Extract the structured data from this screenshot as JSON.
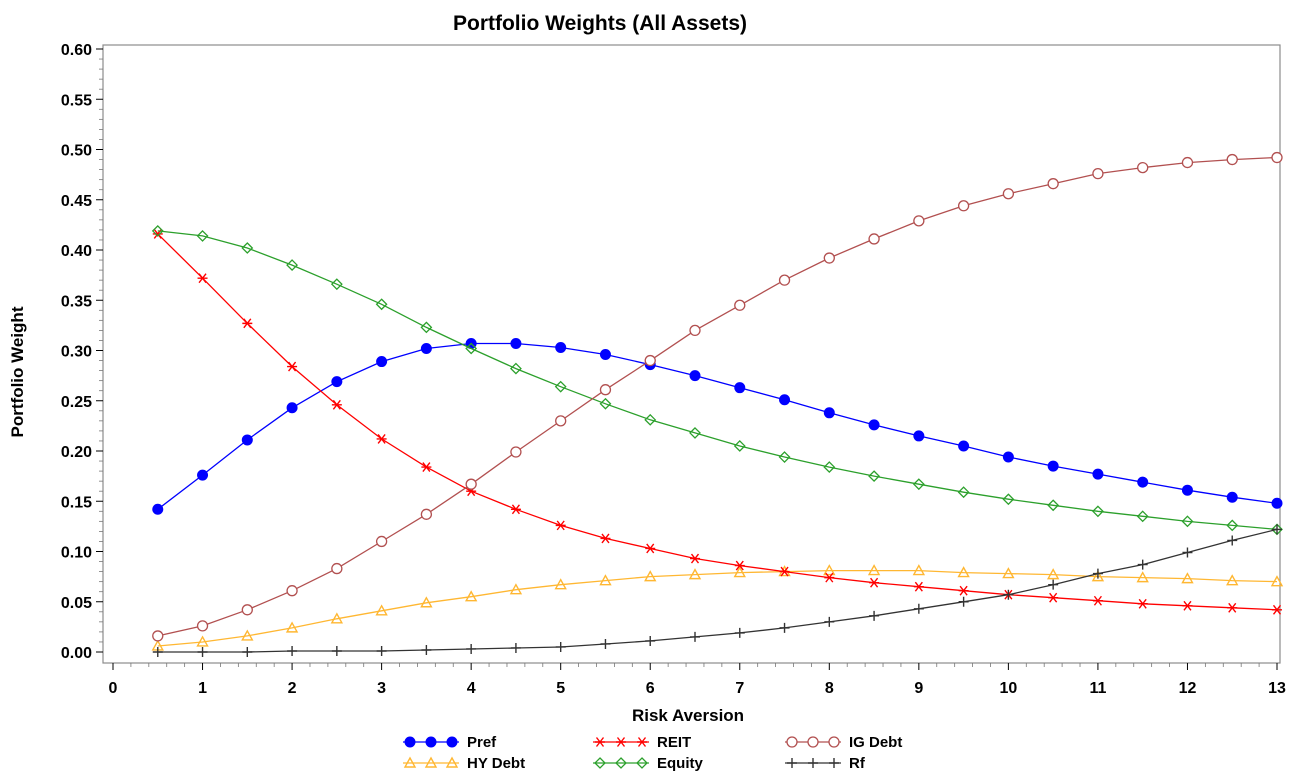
{
  "chart_data": {
    "type": "line",
    "title": "Portfolio Weights (All Assets)",
    "xlabel": "Risk Aversion",
    "ylabel": "Portfolio Weight",
    "xlim": [
      0,
      13
    ],
    "ylim": [
      0,
      0.6
    ],
    "xticks": [
      0,
      1,
      2,
      3,
      4,
      5,
      6,
      7,
      8,
      9,
      10,
      11,
      12,
      13
    ],
    "xtick_labels": [
      "0",
      "1",
      "2",
      "3",
      "4",
      "5",
      "6",
      "7",
      "8",
      "9",
      "10",
      "11",
      "12",
      "13"
    ],
    "yticks": [
      0,
      0.05,
      0.1,
      0.15,
      0.2,
      0.25,
      0.3,
      0.35,
      0.4,
      0.45,
      0.5,
      0.55,
      0.6
    ],
    "ytick_labels": [
      "0.00",
      "0.05",
      "0.10",
      "0.15",
      "0.20",
      "0.25",
      "0.30",
      "0.35",
      "0.40",
      "0.45",
      "0.50",
      "0.55",
      "0.60"
    ],
    "grid": false,
    "legend_position": "bottom",
    "x": [
      0.5,
      1,
      1.5,
      2,
      2.5,
      3,
      3.5,
      4,
      4.5,
      5,
      5.5,
      6,
      6.5,
      7,
      7.5,
      8,
      8.5,
      9,
      9.5,
      10,
      10.5,
      11,
      11.5,
      12,
      12.5,
      13
    ],
    "series": [
      {
        "name": "Pref",
        "color": "#0000ff",
        "marker": "filled-circle",
        "values": [
          0.142,
          0.176,
          0.211,
          0.243,
          0.269,
          0.289,
          0.302,
          0.307,
          0.307,
          0.303,
          0.296,
          0.286,
          0.275,
          0.263,
          0.251,
          0.238,
          0.226,
          0.215,
          0.205,
          0.194,
          0.185,
          0.177,
          0.169,
          0.161,
          0.154,
          0.148
        ]
      },
      {
        "name": "HY Debt",
        "color": "#ffb732",
        "marker": "triangle",
        "values": [
          0.006,
          0.01,
          0.016,
          0.024,
          0.033,
          0.041,
          0.049,
          0.055,
          0.062,
          0.067,
          0.071,
          0.075,
          0.077,
          0.079,
          0.08,
          0.081,
          0.081,
          0.081,
          0.079,
          0.078,
          0.077,
          0.075,
          0.074,
          0.073,
          0.071,
          0.07
        ]
      },
      {
        "name": "REIT",
        "color": "#ff0000",
        "marker": "star",
        "values": [
          0.416,
          0.372,
          0.327,
          0.284,
          0.246,
          0.212,
          0.184,
          0.16,
          0.142,
          0.126,
          0.113,
          0.103,
          0.093,
          0.086,
          0.08,
          0.074,
          0.069,
          0.065,
          0.061,
          0.057,
          0.054,
          0.051,
          0.048,
          0.046,
          0.044,
          0.042
        ]
      },
      {
        "name": "Equity",
        "color": "#2ca02c",
        "marker": "diamond",
        "values": [
          0.419,
          0.414,
          0.402,
          0.385,
          0.366,
          0.346,
          0.323,
          0.302,
          0.282,
          0.264,
          0.247,
          0.231,
          0.218,
          0.205,
          0.194,
          0.184,
          0.175,
          0.167,
          0.159,
          0.152,
          0.146,
          0.14,
          0.135,
          0.13,
          0.126,
          0.122
        ]
      },
      {
        "name": "IG Debt",
        "color": "#b25050",
        "marker": "open-circle",
        "values": [
          0.016,
          0.026,
          0.042,
          0.061,
          0.083,
          0.11,
          0.137,
          0.167,
          0.199,
          0.23,
          0.261,
          0.29,
          0.32,
          0.345,
          0.37,
          0.392,
          0.411,
          0.429,
          0.444,
          0.456,
          0.466,
          0.476,
          0.482,
          0.487,
          0.49,
          0.492
        ]
      },
      {
        "name": "Rf",
        "color": "#333333",
        "marker": "plus",
        "values": [
          0.0,
          0.0,
          0.0,
          0.001,
          0.001,
          0.001,
          0.002,
          0.003,
          0.004,
          0.005,
          0.008,
          0.011,
          0.015,
          0.019,
          0.024,
          0.03,
          0.036,
          0.043,
          0.05,
          0.057,
          0.067,
          0.078,
          0.087,
          0.099,
          0.111,
          0.122
        ]
      }
    ],
    "legend_rows": [
      [
        "Pref",
        "REIT",
        "IG Debt"
      ],
      [
        "HY Debt",
        "Equity",
        "Rf"
      ]
    ]
  }
}
